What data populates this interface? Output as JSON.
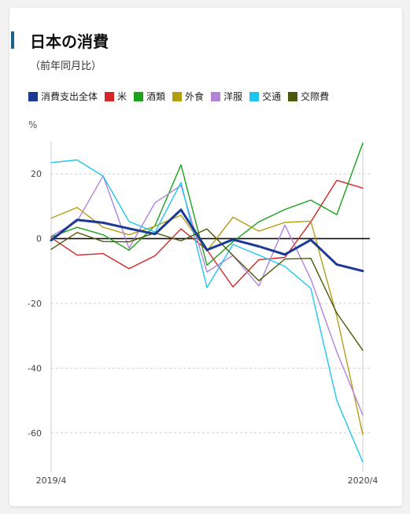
{
  "header": {
    "title": "日本の消費",
    "subtitle": "（前年同月比）"
  },
  "chart_data": {
    "type": "line",
    "title": "日本の消費",
    "subtitle": "（前年同月比）",
    "ylabel": "%",
    "xlabel": "",
    "ylim": [
      -70,
      30
    ],
    "yticks": [
      20,
      0,
      -20,
      -40,
      -60
    ],
    "ytick_labels": [
      "20",
      "0",
      "-20",
      "-40",
      "-60"
    ],
    "x": [
      "2019/4",
      "2019/5",
      "2019/6",
      "2019/7",
      "2019/8",
      "2019/9",
      "2019/10",
      "2019/11",
      "2019/12",
      "2020/1",
      "2020/2",
      "2020/3",
      "2020/4"
    ],
    "xtick_labels_shown": [
      "2019/4",
      "2020/4"
    ],
    "grid": "horizontal-dashed",
    "legend_position": "top",
    "series": [
      {
        "name": "消費支出全体",
        "color": "#1b3a93",
        "values": [
          -0.5,
          5.8,
          4.9,
          3.1,
          1.4,
          8.9,
          -3.5,
          -0.3,
          -2.4,
          -4.9,
          -0.4,
          -8.0,
          -10.0
        ]
      },
      {
        "name": "米",
        "color": "#d32626",
        "values": [
          0.3,
          -5.1,
          -4.6,
          -9.3,
          -5.3,
          3.0,
          -3.5,
          -14.9,
          -6.5,
          -5.8,
          5.2,
          18.0,
          15.6
        ]
      },
      {
        "name": "酒類",
        "color": "#1ba21b",
        "values": [
          0.5,
          3.5,
          1.2,
          -3.6,
          4.0,
          22.8,
          -8.2,
          -1.0,
          5.2,
          9.0,
          11.9,
          7.4,
          29.5
        ]
      },
      {
        "name": "外食",
        "color": "#b59d12",
        "values": [
          6.3,
          9.6,
          3.5,
          1.2,
          3.8,
          7.2,
          -3.8,
          6.6,
          2.3,
          5.0,
          5.4,
          -24.0,
          -60.5
        ]
      },
      {
        "name": "洋服",
        "color": "#b283d9",
        "values": [
          0.8,
          5.3,
          19.4,
          -3.0,
          11.1,
          16.4,
          -10.3,
          -5.2,
          -14.6,
          4.2,
          -12.5,
          -35.0,
          -54.5
        ]
      },
      {
        "name": "交通",
        "color": "#1ec6ef",
        "values": [
          23.5,
          24.3,
          19.3,
          5.3,
          2.0,
          17.3,
          -15.1,
          -1.8,
          -5.1,
          -8.6,
          -15.4,
          -50.0,
          -69.0
        ]
      },
      {
        "name": "交際費",
        "color": "#4a5a0a",
        "values": [
          -3.3,
          1.9,
          -0.9,
          -1.0,
          1.8,
          -0.7,
          3.0,
          -5.2,
          -13.0,
          -6.3,
          -6.1,
          -23.0,
          -34.5
        ]
      }
    ]
  }
}
